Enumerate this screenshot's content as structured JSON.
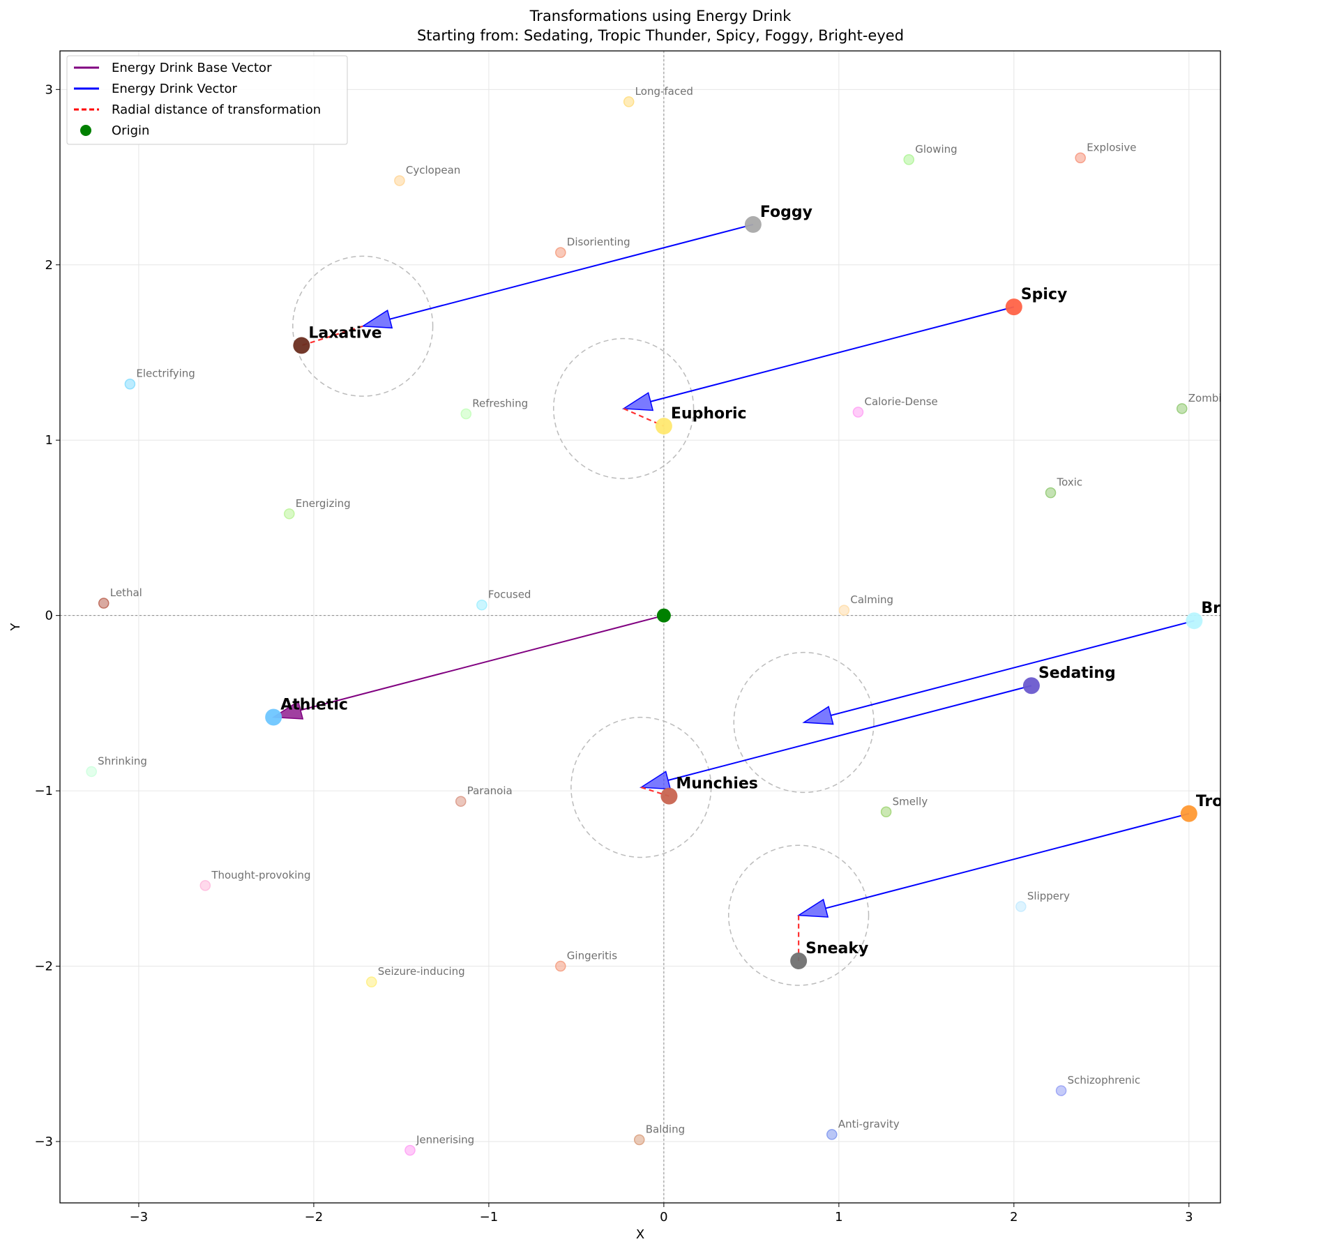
{
  "chart_data": {
    "type": "scatter",
    "title": "Transformations using Energy Drink",
    "subtitle": "Starting from: Sedating, Tropic Thunder, Spicy, Foggy, Bright-eyed",
    "xlabel": "X",
    "ylabel": "Y",
    "xlim": [
      -3.45,
      3.18
    ],
    "ylim": [
      -3.35,
      3.22
    ],
    "xticks": [
      -3,
      -2,
      -1,
      0,
      1,
      2,
      3
    ],
    "yticks": [
      -3,
      -2,
      -1,
      0,
      1,
      2,
      3
    ],
    "xtick_labels": [
      "−3",
      "−2",
      "−1",
      "0",
      "1",
      "2",
      "3"
    ],
    "ytick_labels": [
      "−3",
      "−2",
      "−1",
      "0",
      "1",
      "2",
      "3"
    ],
    "grid": true,
    "legend_position": "top-left",
    "legend": [
      {
        "label": "Energy Drink Base Vector",
        "kind": "line",
        "color": "#800080"
      },
      {
        "label": "Energy Drink Vector",
        "kind": "line",
        "color": "#0000ff"
      },
      {
        "label": "Radial distance of transformation",
        "kind": "dashed",
        "color": "#ff0000"
      },
      {
        "label": "Origin",
        "kind": "dot",
        "color": "#008000"
      }
    ],
    "origin": {
      "x": 0,
      "y": 0,
      "color": "#008000"
    },
    "base_vector": {
      "name": "Energy Drink Base Vector",
      "from": [
        0,
        0
      ],
      "to": [
        -2.23,
        -0.58
      ],
      "color": "#800080"
    },
    "background_effects": [
      {
        "name": "Long-faced",
        "x": -0.2,
        "y": 2.93,
        "color": "#ffe08a"
      },
      {
        "name": "Cyclopean",
        "x": -1.51,
        "y": 2.48,
        "color": "#ffd9a0"
      },
      {
        "name": "Glowing",
        "x": 1.4,
        "y": 2.6,
        "color": "#b6f5a0"
      },
      {
        "name": "Explosive",
        "x": 2.38,
        "y": 2.61,
        "color": "#f7a08a"
      },
      {
        "name": "Disorienting",
        "x": -0.59,
        "y": 2.07,
        "color": "#f5a58a"
      },
      {
        "name": "Electrifying",
        "x": -3.05,
        "y": 1.32,
        "color": "#90e0ff"
      },
      {
        "name": "Refreshing",
        "x": -1.13,
        "y": 1.15,
        "color": "#c8ffc0"
      },
      {
        "name": "Calorie-Dense",
        "x": 1.11,
        "y": 1.16,
        "color": "#ffaaf5"
      },
      {
        "name": "Zombifying",
        "x": 2.96,
        "y": 1.18,
        "color": "#9ccf80"
      },
      {
        "name": "Toxic",
        "x": 2.21,
        "y": 0.7,
        "color": "#9ccf80"
      },
      {
        "name": "Energizing",
        "x": -2.14,
        "y": 0.58,
        "color": "#c0f5a0"
      },
      {
        "name": "Lethal",
        "x": -3.2,
        "y": 0.07,
        "color": "#c07060"
      },
      {
        "name": "Focused",
        "x": -1.04,
        "y": 0.06,
        "color": "#a8f0ff"
      },
      {
        "name": "Calming",
        "x": 1.03,
        "y": 0.03,
        "color": "#ffe0b0"
      },
      {
        "name": "Shrinking",
        "x": -3.27,
        "y": -0.89,
        "color": "#d0ffe0"
      },
      {
        "name": "Paranoia",
        "x": -1.16,
        "y": -1.06,
        "color": "#dda090"
      },
      {
        "name": "Smelly",
        "x": 1.27,
        "y": -1.12,
        "color": "#a8d880"
      },
      {
        "name": "Thought-provoking",
        "x": -2.62,
        "y": -1.54,
        "color": "#ffc0e0"
      },
      {
        "name": "Slippery",
        "x": 2.04,
        "y": -1.66,
        "color": "#c8ecff"
      },
      {
        "name": "Gingeritis",
        "x": -0.59,
        "y": -2.0,
        "color": "#f5a58a"
      },
      {
        "name": "Seizure-inducing",
        "x": -1.67,
        "y": -2.09,
        "color": "#fff08a"
      },
      {
        "name": "Schizophrenic",
        "x": 2.27,
        "y": -2.71,
        "color": "#9fa8f5"
      },
      {
        "name": "Anti-gravity",
        "x": 0.96,
        "y": -2.96,
        "color": "#8aa0f0"
      },
      {
        "name": "Balding",
        "x": -0.14,
        "y": -2.99,
        "color": "#dda88a"
      },
      {
        "name": "Jennerising",
        "x": -1.45,
        "y": -3.05,
        "color": "#ffa8f5"
      }
    ],
    "transformations": [
      {
        "from": "Foggy",
        "from_xy": [
          0.51,
          2.23
        ],
        "from_color": "#a9a9a9",
        "arrow_end": [
          -1.72,
          1.65
        ],
        "to": "Laxative",
        "to_xy": [
          -2.07,
          1.54
        ],
        "to_color": "#6b2e20"
      },
      {
        "from": "Spicy",
        "from_xy": [
          2.0,
          1.76
        ],
        "from_color": "#ff6347",
        "arrow_end": [
          -0.23,
          1.18
        ],
        "to": "Euphoric",
        "to_xy": [
          0.0,
          1.08
        ],
        "to_color": "#ffe870"
      },
      {
        "from": "Bright-eyed",
        "from_xy": [
          3.03,
          -0.03
        ],
        "from_color": "#b8f5ff",
        "arrow_end": [
          0.8,
          -0.61
        ],
        "to": "",
        "to_xy": null,
        "to_color": ""
      },
      {
        "from": "Sedating",
        "from_xy": [
          2.1,
          -0.4
        ],
        "from_color": "#6a5acd",
        "arrow_end": [
          -0.13,
          -0.98
        ],
        "to": "Munchies",
        "to_xy": [
          0.03,
          -1.03
        ],
        "to_color": "#c86450"
      },
      {
        "from": "Tropic Thunder",
        "from_xy": [
          3.0,
          -1.13
        ],
        "from_color": "#ff9933",
        "arrow_end": [
          0.77,
          -1.71
        ],
        "to": "Sneaky",
        "to_xy": [
          0.77,
          -1.97
        ],
        "to_color": "#707070"
      }
    ],
    "result_points": [
      {
        "name": "Athletic",
        "x": -2.23,
        "y": -0.58,
        "color": "#6ec6ff"
      }
    ],
    "colors": {
      "vector": "#0000ff",
      "arrow_fill": "#4d4dff",
      "base_vector": "#800080",
      "radial": "#ff3030",
      "circle": "#bbbbbb",
      "grid": "#e6e6e6",
      "zero_line": "#888888"
    }
  }
}
